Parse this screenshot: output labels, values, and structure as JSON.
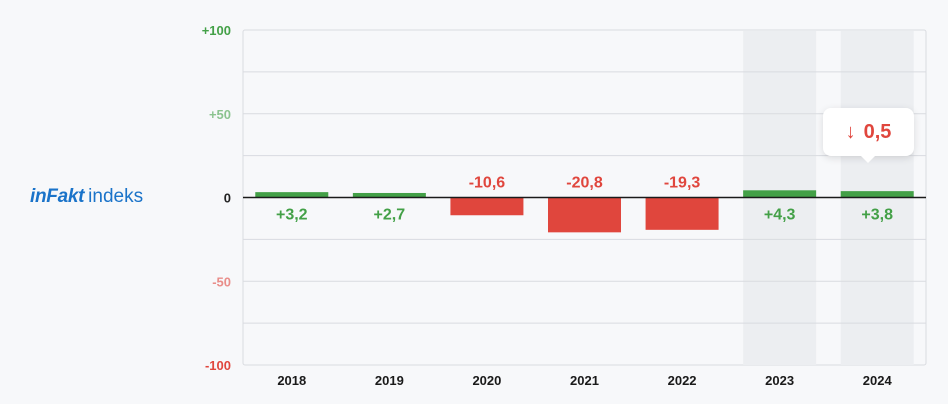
{
  "brand": {
    "bold": "inFakt",
    "regular": "indeks"
  },
  "tooltip": {
    "arrow_icon": "arrow-down-icon",
    "value": "0,5",
    "color": "#e0463d"
  },
  "colors": {
    "positive": "#43a047",
    "negative": "#e0463d",
    "highlight_band": "#eceef1",
    "grid": "#d9dbe0"
  },
  "chart_data": {
    "type": "bar",
    "categories": [
      "2018",
      "2019",
      "2020",
      "2021",
      "2022",
      "2023",
      "2024"
    ],
    "values": [
      3.2,
      2.7,
      -10.6,
      -20.8,
      -19.3,
      4.3,
      3.8
    ],
    "value_labels": [
      "+3,2",
      "+2,7",
      "-10,6",
      "-20,8",
      "-19,3",
      "+4,3",
      "+3,8"
    ],
    "highlighted_categories": [
      "2023",
      "2024"
    ],
    "ylim": [
      -100,
      100
    ],
    "yticks": [
      100,
      50,
      0,
      -50,
      -100
    ],
    "ytick_labels": [
      "+100",
      "+50",
      "0",
      "-50",
      "-100"
    ],
    "grid": true,
    "xlabel": "",
    "ylabel": "",
    "title": ""
  }
}
